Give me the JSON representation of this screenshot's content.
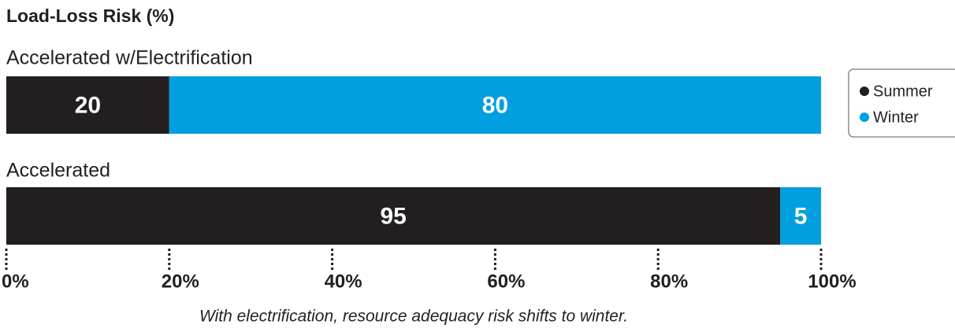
{
  "chart_data": {
    "type": "stacked-bar-horizontal",
    "title": "Load-Loss Risk (%)",
    "categories": [
      "Accelerated w/Electrification",
      "Accelerated"
    ],
    "series": [
      {
        "name": "Summer",
        "color": "#231f20",
        "values": [
          20,
          95
        ]
      },
      {
        "name": "Winter",
        "color": "#009fdf",
        "values": [
          80,
          5
        ]
      }
    ],
    "xlim": [
      0,
      100
    ],
    "xticks": [
      {
        "value": 0,
        "label": "0%"
      },
      {
        "value": 20,
        "label": "20%"
      },
      {
        "value": 40,
        "label": "40%"
      },
      {
        "value": 60,
        "label": "60%"
      },
      {
        "value": 80,
        "label": "80%"
      },
      {
        "value": 100,
        "label": "100%"
      }
    ],
    "annotation": "With electrification, resource adequacy risk shifts to winter.",
    "legend": "right"
  }
}
